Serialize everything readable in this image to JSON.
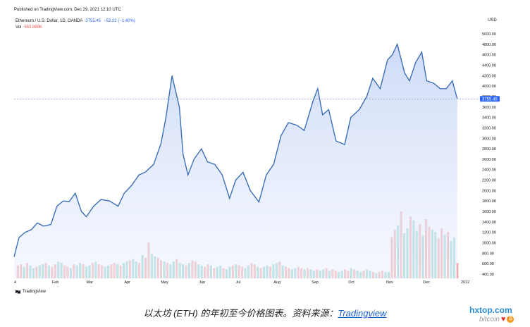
{
  "header": {
    "published": "Published on TradingView.com, Dec 29, 2021 12:10 UTC"
  },
  "legend": {
    "symbol": "Ethereum / U.S. Dollar, 1D, OANDA",
    "price": "3755.45",
    "change": "−53.22 (−1.40%)",
    "vol_label": "Vol",
    "vol_value": "553.899K"
  },
  "unit": "USD",
  "last_price_label": "3755.45",
  "footer": {
    "brand": "TradingView"
  },
  "caption": {
    "text": "以太坊 (ETH) 的年初至今价格图表。资料来源：",
    "link": "Tradingview"
  },
  "watermark": {
    "site": "hxtop.com",
    "sub": "bitcoin"
  },
  "colors": {
    "line": "#3d6fb6",
    "area_top": "#c9d7f6",
    "vol_up": "#80cbc4",
    "vol_down": "#ef9a9a",
    "axis_text": "#131722"
  },
  "chart_data": {
    "type": "area",
    "title": "",
    "ylabel": "USD",
    "ylim": [
      300,
      5100
    ],
    "y_ticks": [
      400,
      600,
      800,
      1000,
      1200,
      1400,
      1600,
      1800,
      2000,
      2200,
      2400,
      2600,
      2800,
      3000,
      3200,
      3400,
      3600,
      3800,
      4000,
      4200,
      4400,
      4600,
      4800,
      5000
    ],
    "y_tick_labels": [
      "400.00",
      "600.00",
      "800.00",
      "1000.00",
      "1200.00",
      "1400.00",
      "1600.00",
      "1800.00",
      "2000.00",
      "2200.00",
      "2400.00",
      "2600.00",
      "2800.00",
      "3000.00",
      "3200.00",
      "3400.00",
      "3600.00",
      "3800.00",
      "4000.00",
      "4200.00",
      "4400.00",
      "4600.00",
      "4800.00",
      "5000.00"
    ],
    "x_labels": [
      "4",
      "Feb",
      "Mar",
      "Apr",
      "May",
      "Jun",
      "Jul",
      "Aug",
      "Sep",
      "Oct",
      "Nov",
      "Dec",
      "2022"
    ],
    "x_label_dates": [
      "2021-01-04",
      "2021-02-01",
      "2021-03-01",
      "2021-04-01",
      "2021-05-01",
      "2021-06-01",
      "2021-07-01",
      "2021-08-01",
      "2021-09-01",
      "2021-10-01",
      "2021-11-01",
      "2021-12-01",
      "2022-01-01"
    ],
    "price_series": {
      "x": [
        "2021-01-01",
        "2021-01-05",
        "2021-01-10",
        "2021-01-15",
        "2021-01-20",
        "2021-01-25",
        "2021-01-31",
        "2021-02-05",
        "2021-02-10",
        "2021-02-15",
        "2021-02-20",
        "2021-02-25",
        "2021-03-01",
        "2021-03-07",
        "2021-03-13",
        "2021-03-20",
        "2021-03-27",
        "2021-04-01",
        "2021-04-07",
        "2021-04-13",
        "2021-04-18",
        "2021-04-25",
        "2021-05-01",
        "2021-05-05",
        "2021-05-10",
        "2021-05-12",
        "2021-05-16",
        "2021-05-19",
        "2021-05-23",
        "2021-05-28",
        "2021-06-03",
        "2021-06-08",
        "2021-06-14",
        "2021-06-20",
        "2021-06-26",
        "2021-07-01",
        "2021-07-07",
        "2021-07-13",
        "2021-07-20",
        "2021-07-26",
        "2021-08-01",
        "2021-08-07",
        "2021-08-13",
        "2021-08-20",
        "2021-08-26",
        "2021-09-02",
        "2021-09-06",
        "2021-09-10",
        "2021-09-15",
        "2021-09-21",
        "2021-09-28",
        "2021-10-03",
        "2021-10-10",
        "2021-10-16",
        "2021-10-21",
        "2021-10-27",
        "2021-11-02",
        "2021-11-06",
        "2021-11-10",
        "2021-11-16",
        "2021-11-20",
        "2021-11-25",
        "2021-11-30",
        "2021-12-04",
        "2021-12-10",
        "2021-12-15",
        "2021-12-20",
        "2021-12-25",
        "2021-12-29"
      ],
      "y": [
        730,
        1100,
        1200,
        1250,
        1380,
        1320,
        1350,
        1700,
        1800,
        1790,
        1950,
        1600,
        1500,
        1700,
        1830,
        1800,
        1700,
        1950,
        2100,
        2300,
        2350,
        2500,
        2900,
        3400,
        4200,
        4000,
        3600,
        2700,
        2300,
        2600,
        2800,
        2550,
        2500,
        2300,
        1850,
        2200,
        2350,
        2000,
        1780,
        2300,
        2500,
        3050,
        3300,
        3250,
        3150,
        3700,
        3950,
        3450,
        3550,
        2950,
        2880,
        3400,
        3550,
        3800,
        4150,
        3950,
        4500,
        4600,
        4800,
        4250,
        4100,
        4450,
        4650,
        4100,
        4050,
        3950,
        3950,
        4100,
        3755
      ],
      "last_value": 3755.45
    },
    "volume_series": {
      "note_up_down": "alternating",
      "x_start": "2021-01-04",
      "x_end": "2021-12-29",
      "values": [
        1.0,
        1.1,
        0.9,
        1.2,
        1.0,
        0.8,
        0.9,
        1.0,
        1.1,
        1.2,
        1.0,
        0.9,
        1.1,
        1.3,
        1.2,
        1.0,
        0.9,
        0.8,
        1.1,
        1.0,
        1.2,
        1.1,
        0.9,
        1.0,
        1.2,
        1.3,
        1.1,
        1.0,
        0.9,
        1.0,
        1.1,
        1.2,
        1.1,
        1.0,
        1.2,
        1.3,
        1.4,
        1.5,
        1.3,
        1.2,
        1.8,
        1.6,
        2.8,
        1.9,
        1.7,
        1.6,
        1.4,
        1.3,
        1.2,
        1.1,
        1.3,
        1.5,
        1.2,
        1.1,
        1.0,
        1.2,
        1.4,
        1.3,
        1.1,
        1.0,
        0.9,
        1.1,
        1.0,
        0.8,
        0.9,
        1.0,
        0.8,
        0.7,
        0.9,
        1.0,
        1.1,
        1.0,
        0.9,
        0.8,
        1.0,
        1.2,
        1.1,
        0.9,
        0.8,
        0.9,
        1.0,
        0.9,
        1.1,
        1.2,
        1.3,
        1.0,
        0.9,
        0.8,
        0.7,
        0.8,
        0.9,
        0.8,
        0.7,
        0.8,
        0.7,
        0.6,
        0.7,
        0.6,
        0.7,
        0.8,
        0.6,
        0.7,
        0.6,
        0.5,
        0.6,
        0.7,
        0.6,
        0.8,
        0.7,
        0.6,
        0.5,
        0.6,
        0.7,
        0.6,
        0.5,
        0.4,
        0.5,
        0.6,
        0.5,
        0.5,
        3.2,
        3.8,
        4.1,
        5.2,
        3.5,
        3.9,
        4.8,
        4.5,
        3.7,
        4.2,
        3.3,
        4.6,
        4.0,
        3.8,
        3.6,
        3.1,
        3.9,
        3.4,
        3.6,
        2.9,
        3.2,
        1.2
      ]
    }
  }
}
